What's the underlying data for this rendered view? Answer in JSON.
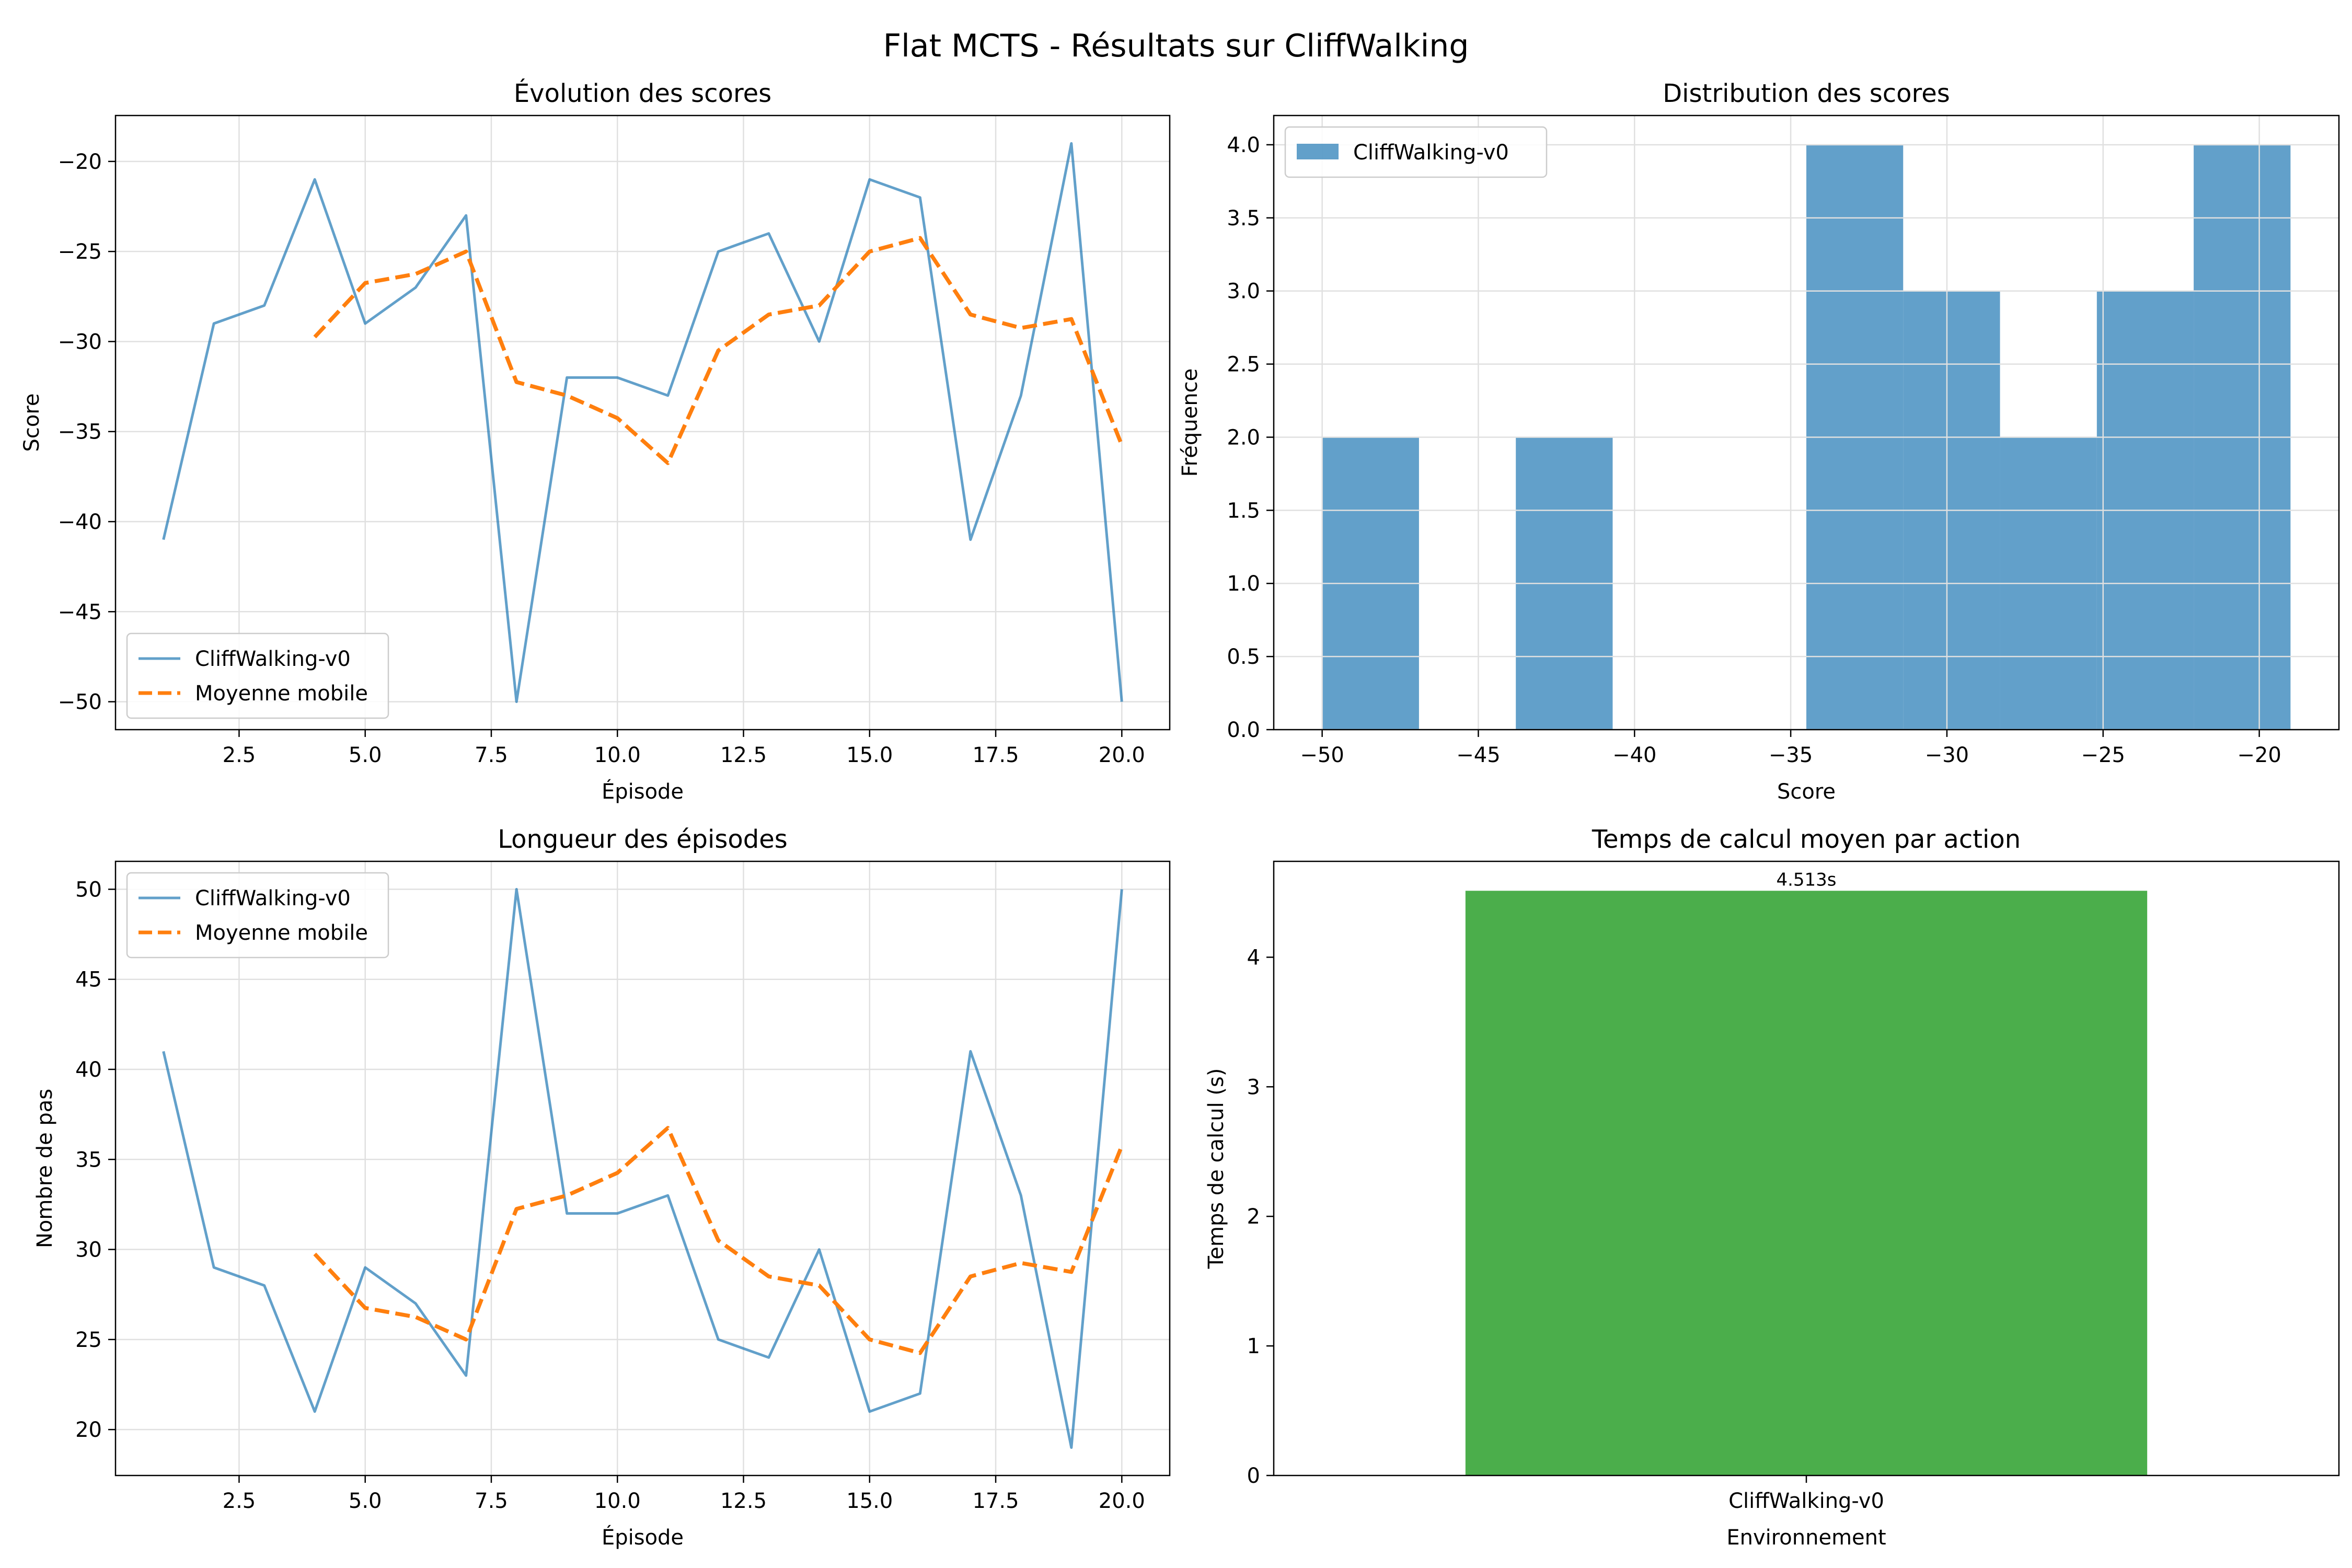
{
  "suptitle": "Flat MCTS - Résultats sur CliffWalking",
  "colors": {
    "primary": "#1f77b4",
    "moving_avg": "#ff7f0e",
    "bar": "#2ca02c",
    "grid": "#e0e0e0"
  },
  "chart_data": [
    {
      "type": "line",
      "title": "Évolution des scores",
      "xlabel": "Épisode",
      "ylabel": "Score",
      "xlim": [
        0.05,
        20.95
      ],
      "ylim": [
        -51.55,
        -17.45
      ],
      "xticks": [
        2.5,
        5.0,
        7.5,
        10.0,
        12.5,
        15.0,
        17.5,
        20.0
      ],
      "xtick_labels": [
        "2.5",
        "5.0",
        "7.5",
        "10.0",
        "12.5",
        "15.0",
        "17.5",
        "20.0"
      ],
      "yticks": [
        -50,
        -45,
        -40,
        -35,
        -30,
        -25,
        -20
      ],
      "ytick_labels": [
        "−50",
        "−45",
        "−40",
        "−35",
        "−30",
        "−25",
        "−20"
      ],
      "grid": true,
      "legend": "lower-left",
      "series": [
        {
          "name": "CliffWalking-v0",
          "style": "solid",
          "color": "#1f77b4",
          "x": [
            1,
            2,
            3,
            4,
            5,
            6,
            7,
            8,
            9,
            10,
            11,
            12,
            13,
            14,
            15,
            16,
            17,
            18,
            19,
            20
          ],
          "y": [
            -41,
            -29,
            -28,
            -21,
            -29,
            -27,
            -23,
            -50,
            -32,
            -32,
            -33,
            -25,
            -24,
            -30,
            -21,
            -22,
            -41,
            -33,
            -19,
            -50
          ]
        },
        {
          "name": "Moyenne mobile",
          "style": "dashed",
          "color": "#ff7f0e",
          "x": [
            4,
            5,
            6,
            7,
            8,
            9,
            10,
            11,
            12,
            13,
            14,
            15,
            16,
            17,
            18,
            19,
            20
          ],
          "y": [
            -29.75,
            -26.75,
            -26.25,
            -25,
            -32.25,
            -33,
            -34.25,
            -36.75,
            -30.5,
            -28.5,
            -28,
            -25,
            -24.25,
            -28.5,
            -29.25,
            -28.75,
            -35.75
          ]
        }
      ]
    },
    {
      "type": "bar",
      "subtype": "histogram",
      "title": "Distribution des scores",
      "xlabel": "Score",
      "ylabel": "Fréquence",
      "xlim": [
        -51.55,
        -17.45
      ],
      "ylim": [
        0,
        4.2
      ],
      "xticks": [
        -50,
        -45,
        -40,
        -35,
        -30,
        -25,
        -20
      ],
      "xtick_labels": [
        "−50",
        "−45",
        "−40",
        "−35",
        "−30",
        "−25",
        "−20"
      ],
      "yticks": [
        0,
        0.5,
        1.0,
        1.5,
        2.0,
        2.5,
        3.0,
        3.5,
        4.0
      ],
      "ytick_labels": [
        "0.0",
        "0.5",
        "1.0",
        "1.5",
        "2.0",
        "2.5",
        "3.0",
        "3.5",
        "4.0"
      ],
      "grid": true,
      "legend": "top-left",
      "series": [
        {
          "name": "CliffWalking-v0",
          "color": "#1f77b4",
          "bin_edges": [
            -50,
            -46.9,
            -43.8,
            -40.7,
            -37.6,
            -34.5,
            -31.4,
            -28.3,
            -25.2,
            -22.1,
            -19
          ],
          "values": [
            2,
            0,
            2,
            0,
            0,
            4,
            3,
            2,
            3,
            4
          ]
        }
      ]
    },
    {
      "type": "line",
      "title": "Longueur des épisodes",
      "xlabel": "Épisode",
      "ylabel": "Nombre de pas",
      "xlim": [
        0.05,
        20.95
      ],
      "ylim": [
        17.45,
        51.55
      ],
      "xticks": [
        2.5,
        5.0,
        7.5,
        10.0,
        12.5,
        15.0,
        17.5,
        20.0
      ],
      "xtick_labels": [
        "2.5",
        "5.0",
        "7.5",
        "10.0",
        "12.5",
        "15.0",
        "17.5",
        "20.0"
      ],
      "yticks": [
        20,
        25,
        30,
        35,
        40,
        45,
        50
      ],
      "ytick_labels": [
        "20",
        "25",
        "30",
        "35",
        "40",
        "45",
        "50"
      ],
      "grid": true,
      "legend": "top-left",
      "series": [
        {
          "name": "CliffWalking-v0",
          "style": "solid",
          "color": "#1f77b4",
          "x": [
            1,
            2,
            3,
            4,
            5,
            6,
            7,
            8,
            9,
            10,
            11,
            12,
            13,
            14,
            15,
            16,
            17,
            18,
            19,
            20
          ],
          "y": [
            41,
            29,
            28,
            21,
            29,
            27,
            23,
            50,
            32,
            32,
            33,
            25,
            24,
            30,
            21,
            22,
            41,
            33,
            19,
            50
          ]
        },
        {
          "name": "Moyenne mobile",
          "style": "dashed",
          "color": "#ff7f0e",
          "x": [
            4,
            5,
            6,
            7,
            8,
            9,
            10,
            11,
            12,
            13,
            14,
            15,
            16,
            17,
            18,
            19,
            20
          ],
          "y": [
            29.75,
            26.75,
            26.25,
            25,
            32.25,
            33,
            34.25,
            36.75,
            30.5,
            28.5,
            28,
            25,
            24.25,
            28.5,
            29.25,
            28.75,
            35.75
          ]
        }
      ]
    },
    {
      "type": "bar",
      "title": "Temps de calcul moyen par action",
      "xlabel": "Environnement",
      "ylabel": "Temps de calcul (s)",
      "categories": [
        "CliffWalking-v0"
      ],
      "values": [
        4.513
      ],
      "value_labels": [
        "4.513s"
      ],
      "ylim": [
        0,
        4.74
      ],
      "yticks": [
        0,
        1,
        2,
        3,
        4
      ],
      "ytick_labels": [
        "0",
        "1",
        "2",
        "3",
        "4"
      ],
      "grid": false,
      "color": "#2ca02c"
    }
  ]
}
